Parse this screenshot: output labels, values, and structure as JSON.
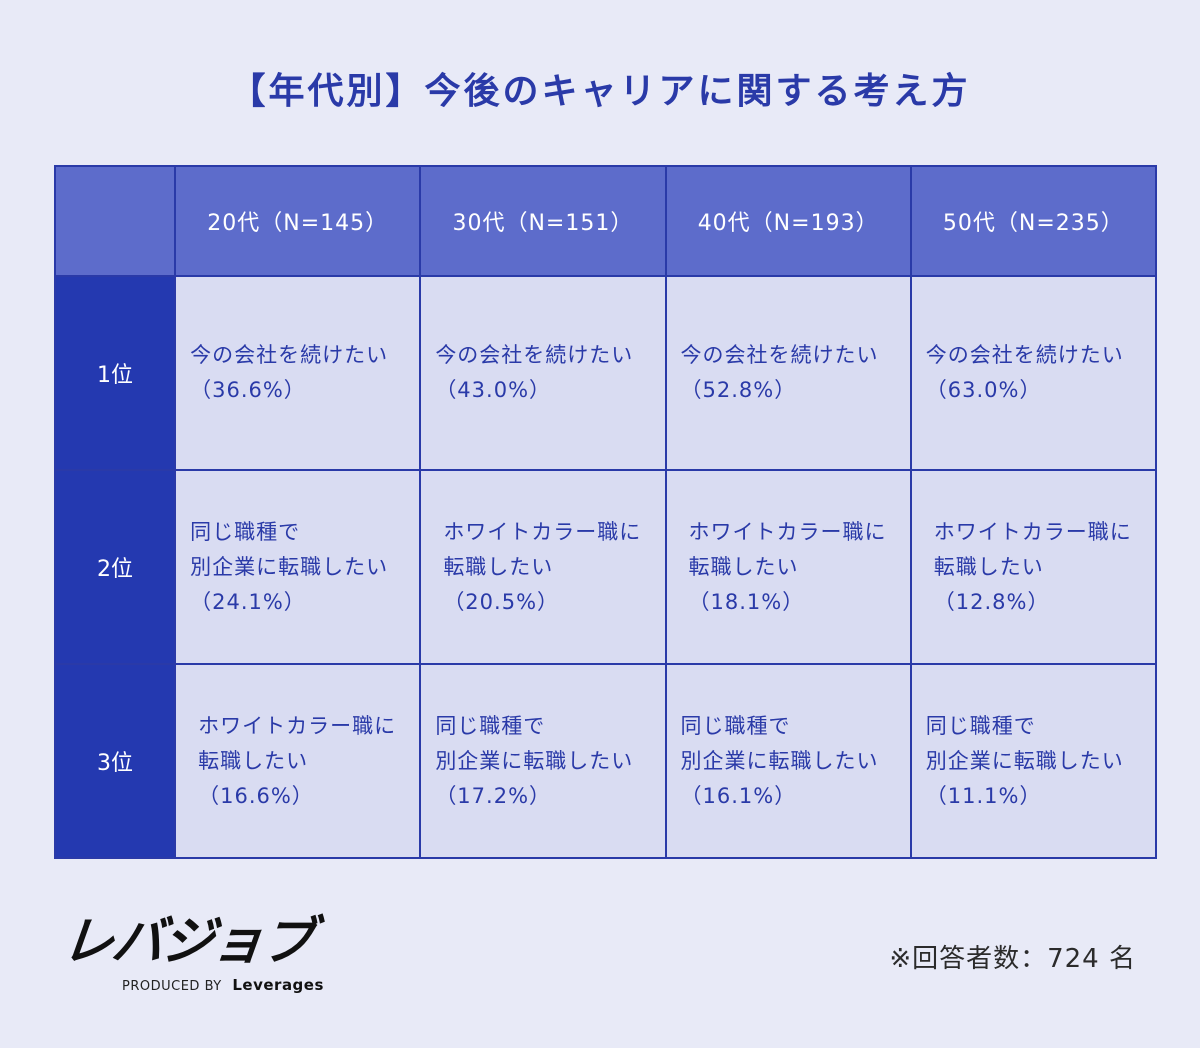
{
  "title": "【年代別】今後のキャリアに関する考え方",
  "chart_data": {
    "type": "table",
    "title": "【年代別】今後のキャリアに関する考え方",
    "columns": [
      "20代（N=145）",
      "30代（N=151）",
      "40代（N=193）",
      "50代（N=235）"
    ],
    "rows": [
      {
        "rank": "1位",
        "cells": [
          {
            "lines": [
              "今の会社を続けたい",
              "（36.6%）"
            ]
          },
          {
            "lines": [
              "今の会社を続けたい",
              "（43.0%）"
            ]
          },
          {
            "lines": [
              "今の会社を続けたい",
              "（52.8%）"
            ]
          },
          {
            "lines": [
              "今の会社を続けたい",
              "（63.0%）"
            ]
          }
        ]
      },
      {
        "rank": "2位",
        "cells": [
          {
            "lines": [
              "同じ職種で",
              "別企業に転職したい",
              "（24.1%）"
            ]
          },
          {
            "lines": [
              "ホワイトカラー職に",
              "転職したい",
              "（20.5%）"
            ]
          },
          {
            "lines": [
              "ホワイトカラー職に",
              "転職したい",
              "（18.1%）"
            ]
          },
          {
            "lines": [
              "ホワイトカラー職に",
              "転職したい",
              "（12.8%）"
            ]
          }
        ]
      },
      {
        "rank": "3位",
        "cells": [
          {
            "lines": [
              "ホワイトカラー職に",
              "転職したい",
              "（16.6%）"
            ]
          },
          {
            "lines": [
              "同じ職種で",
              "別企業に転職したい",
              "（17.2%）"
            ]
          },
          {
            "lines": [
              "同じ職種で",
              "別企業に転職したい",
              "（16.1%）"
            ]
          },
          {
            "lines": [
              "同じ職種で",
              "別企業に転職したい",
              "（11.1%）"
            ]
          }
        ]
      }
    ]
  },
  "logo": {
    "main": "レバジョブ",
    "produced_by": "PRODUCED BY",
    "brand": "Leverages"
  },
  "footnote": "※回答者数：724 名",
  "colors": {
    "background": "#e8eaf7",
    "header": "#5d6ccb",
    "rank": "#2439b0",
    "cell": "#d9dcf2",
    "text": "#2a3aa8"
  }
}
